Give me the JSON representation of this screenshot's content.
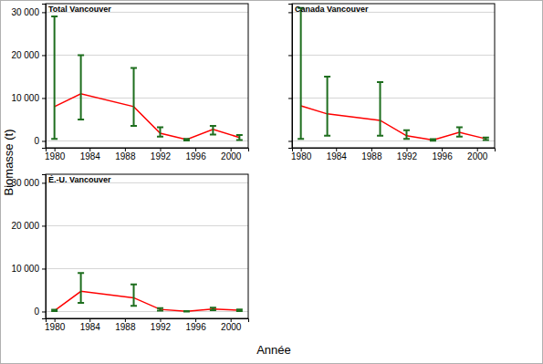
{
  "chart_data": [
    {
      "type": "line",
      "title": "Total Vancouver",
      "x": [
        1980,
        1983,
        1989,
        1992,
        1995,
        1998,
        2001
      ],
      "xlim": [
        1979,
        2002
      ],
      "xticks": [
        1980,
        1984,
        1988,
        1992,
        1996,
        2000
      ],
      "ylim": [
        -1600,
        32000
      ],
      "yticks": [
        0,
        {
          "value": 10000,
          "label": "10 000"
        },
        {
          "value": 20000,
          "label": "20 000"
        },
        {
          "value": 30000,
          "label": "30 000"
        }
      ],
      "grid": true,
      "series": [
        {
          "color": "#ff0000",
          "values": [
            8000,
            11000,
            8000,
            1800,
            300,
            2700,
            800
          ],
          "lower": [
            500,
            5000,
            3500,
            1000,
            100,
            1500,
            200
          ],
          "upper": [
            29000,
            20000,
            17000,
            3200,
            500,
            3500,
            1400
          ]
        }
      ]
    },
    {
      "type": "line",
      "title": "Canada Vancouver",
      "x": [
        1980,
        1983,
        1989,
        1992,
        1995,
        1998,
        2001
      ],
      "xlim": [
        1979,
        2002
      ],
      "xticks": [
        1980,
        1984,
        1988,
        1992,
        1996,
        2000
      ],
      "ylim": [
        -1600,
        32000
      ],
      "yticks": [
        0,
        10000,
        20000,
        30000
      ],
      "grid": true,
      "tick_labels": "x",
      "series": [
        {
          "color": "#ff0000",
          "values": [
            8200,
            6300,
            4800,
            1200,
            200,
            2000,
            500
          ],
          "lower": [
            500,
            1200,
            1200,
            500,
            50,
            1000,
            200
          ],
          "upper": [
            31000,
            15000,
            13700,
            2500,
            400,
            3200,
            800
          ]
        }
      ]
    },
    {
      "type": "line",
      "title": "É.-U. Vancouver",
      "x": [
        1980,
        1983,
        1989,
        1992,
        1995,
        1998,
        2001
      ],
      "xlim": [
        1979,
        2002
      ],
      "xticks": [
        1980,
        1984,
        1988,
        1992,
        1996,
        2000
      ],
      "ylim": [
        -1600,
        32000
      ],
      "yticks": [
        0,
        {
          "value": 10000,
          "label": "10 000"
        },
        {
          "value": 20000,
          "label": "20 000"
        },
        {
          "value": 30000,
          "label": "30 000"
        }
      ],
      "grid": true,
      "series": [
        {
          "color": "#ff0000",
          "values": [
            200,
            4700,
            3200,
            500,
            50,
            600,
            300
          ],
          "lower": [
            100,
            2000,
            1300,
            200,
            0,
            300,
            100
          ],
          "upper": [
            400,
            9000,
            6300,
            800,
            100,
            900,
            500
          ]
        }
      ]
    }
  ],
  "xlabel": "Année",
  "ylabel": "Biomasse (t)"
}
